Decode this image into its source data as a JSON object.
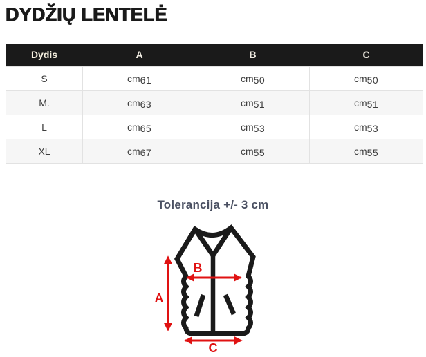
{
  "page": {
    "title": "DYDŽIŲ LENTELĖ",
    "tolerance_note": "Tolerancija +/- 3 cm"
  },
  "table": {
    "headers": [
      "Dydis",
      "A",
      "B",
      "C"
    ],
    "rows": [
      {
        "size": "S",
        "cells": [
          "cm61",
          "cm50",
          "cm50"
        ]
      },
      {
        "size": "M.",
        "cells": [
          "cm63",
          "cm51",
          "cm51"
        ]
      },
      {
        "size": "L",
        "cells": [
          "cm65",
          "cm53",
          "cm53"
        ]
      },
      {
        "size": "XL",
        "cells": [
          "cm67",
          "cm55",
          "cm55"
        ]
      }
    ]
  },
  "diagram": {
    "labels": {
      "a": "A",
      "b": "B",
      "c": "C"
    }
  },
  "colors": {
    "arrow_red": "#e01212",
    "outline_black": "#1a1a1a",
    "header_background": "#1a1a1a",
    "tolerance_text": "#4a5062"
  }
}
